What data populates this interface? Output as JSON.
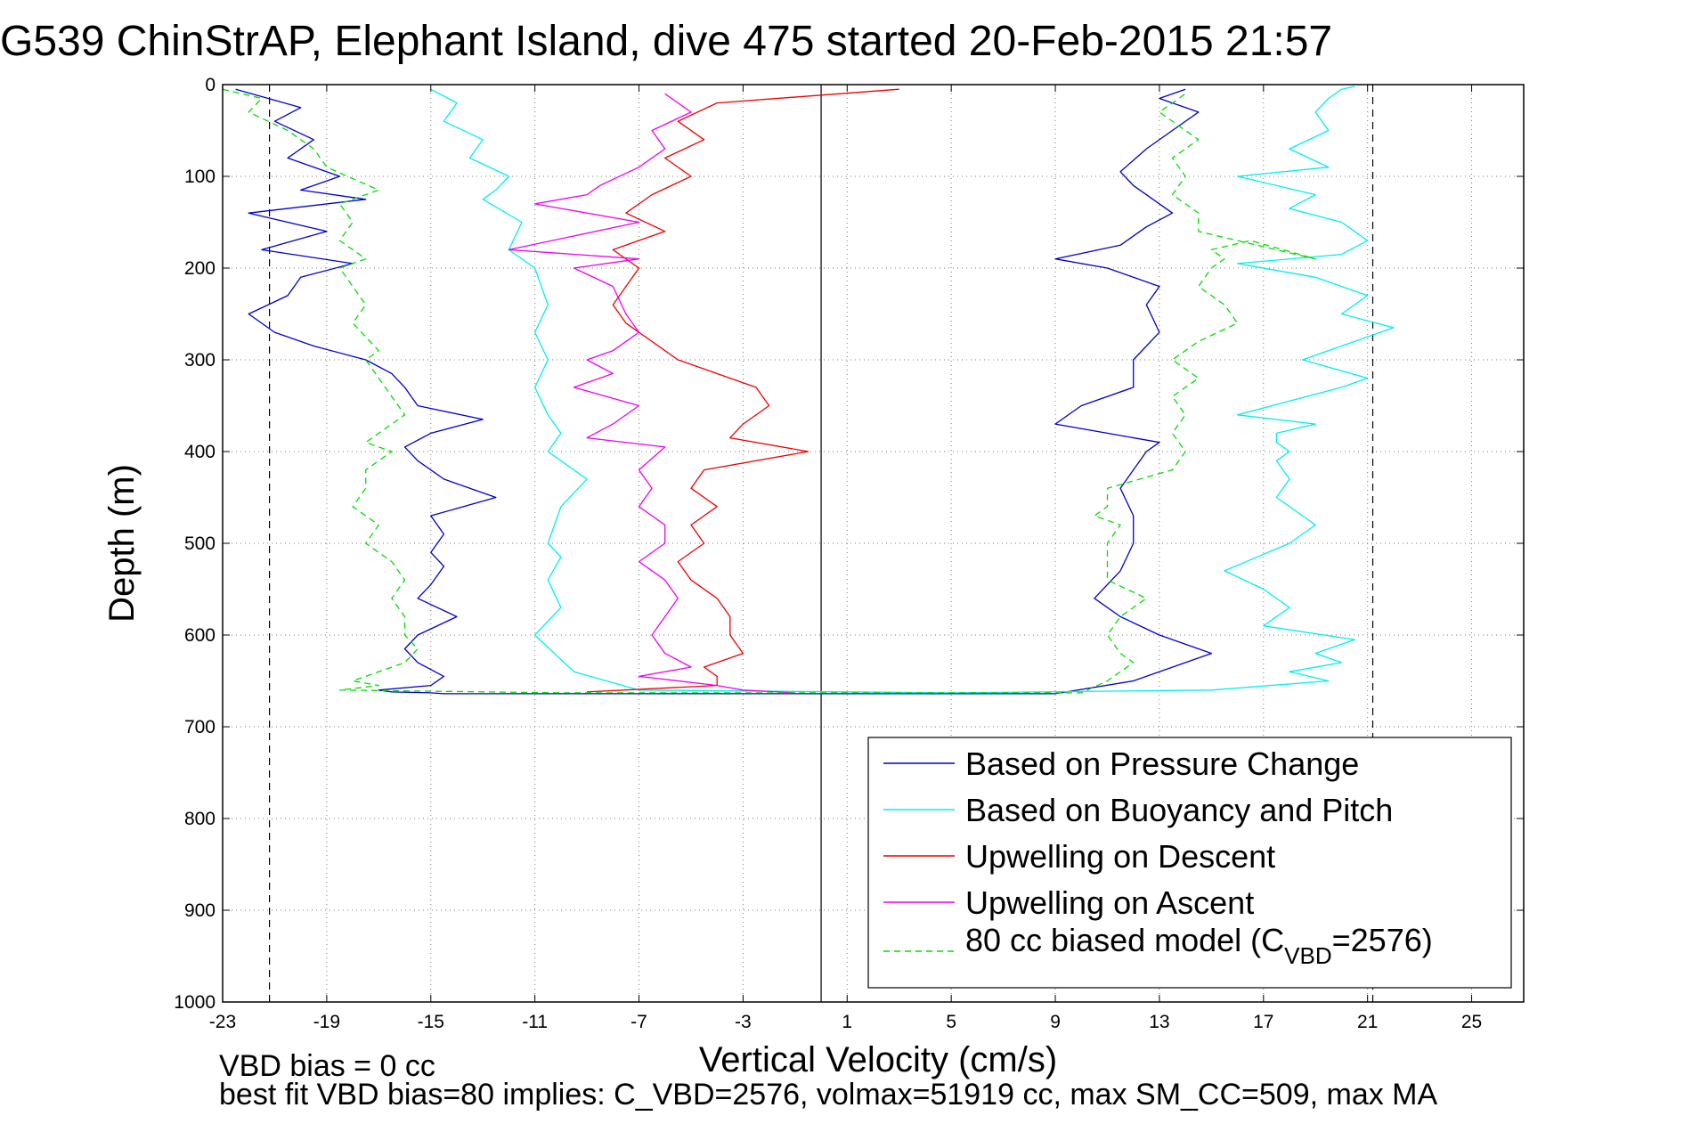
{
  "chart_data": {
    "type": "line",
    "title": "G539 ChinStrAP, Elephant Island, dive 475 started 20-Feb-2015 21:57",
    "xlabel": "Vertical Velocity (cm/s)",
    "ylabel": "Depth (m)",
    "xlim": [
      -23,
      27
    ],
    "ylim": [
      0,
      1000
    ],
    "y_reversed": true,
    "grid": true,
    "legend_position": "lower-right",
    "x_ticks": [
      -23,
      -19,
      -15,
      -11,
      -7,
      -3,
      1,
      5,
      9,
      13,
      17,
      21,
      25
    ],
    "x_tick_labels": [
      "-23",
      "-19",
      "-15",
      "-11",
      "-7",
      "-3",
      "1",
      "5",
      "9",
      "13",
      "17",
      "21",
      "25"
    ],
    "y_ticks": [
      0,
      100,
      200,
      300,
      400,
      500,
      600,
      700,
      800,
      900,
      1000
    ],
    "y_tick_labels": [
      "0",
      "100",
      "200",
      "300",
      "400",
      "500",
      "600",
      "700",
      "800",
      "900",
      "1000"
    ],
    "reference_lines": {
      "solid_vertical_x": 0,
      "dashed_vertical_x": [
        -21.2,
        21.2
      ]
    },
    "series": [
      {
        "name": "Based on Pressure Change",
        "color": "#0000cc",
        "style": "solid",
        "x": [
          -22.5,
          -20,
          -21,
          -19.5,
          -20.5,
          -18.5,
          -20,
          -17.5,
          -22,
          -19,
          -21.5,
          -18,
          -20,
          -20.5,
          -22,
          -21,
          -19.5,
          -17.5,
          -16.5,
          -16,
          -15.5,
          -13,
          -15,
          -16,
          -15.5,
          -14.5,
          -12.5,
          -15,
          -14.5,
          -15,
          -14.5,
          -15,
          -15.5,
          -14,
          -15.5,
          -16,
          -15.5,
          -14.5,
          -15,
          -17,
          -16.5,
          -15,
          -14.5,
          -14,
          -13.5,
          -8,
          9,
          12,
          15,
          13,
          11.5,
          10.5,
          11.5,
          12,
          12,
          11.5,
          12,
          12.5,
          13,
          11,
          9,
          10,
          12,
          12,
          13,
          12.5,
          13,
          11,
          9,
          11.5,
          12.5,
          13.5,
          12,
          11.5,
          12.5,
          13.5,
          14.5,
          13,
          14
        ],
        "y": [
          5,
          25,
          40,
          60,
          80,
          100,
          115,
          125,
          140,
          160,
          180,
          195,
          210,
          230,
          250,
          270,
          285,
          300,
          315,
          330,
          350,
          365,
          380,
          395,
          410,
          430,
          450,
          470,
          490,
          510,
          525,
          545,
          560,
          580,
          600,
          615,
          630,
          645,
          655,
          660,
          662,
          663,
          664,
          664,
          664,
          664,
          664,
          650,
          620,
          600,
          580,
          560,
          530,
          500,
          470,
          440,
          420,
          400,
          390,
          380,
          370,
          350,
          330,
          300,
          270,
          240,
          220,
          200,
          190,
          175,
          155,
          140,
          110,
          95,
          70,
          50,
          30,
          15,
          5
        ]
      },
      {
        "name": "Based on Buoyancy and Pitch",
        "color": "#00eeee",
        "style": "solid",
        "x": [
          -15,
          -14,
          -14.5,
          -13,
          -13.5,
          -12,
          -12.5,
          -13,
          -11.5,
          -12,
          -11,
          -10.5,
          -11,
          -10.5,
          -11,
          -10.5,
          -10,
          -10.5,
          -9,
          -10,
          -10.5,
          -10,
          -10.5,
          -10,
          -11,
          -9.5,
          -7,
          5,
          15,
          19.5,
          18,
          20,
          19,
          20.5,
          17,
          18,
          17,
          15.5,
          18,
          19,
          17.5,
          18,
          17.5,
          18,
          17.5,
          17.5,
          19,
          16,
          20,
          21,
          18.5,
          20,
          22,
          20,
          21,
          19,
          16,
          20,
          21,
          20,
          18,
          19,
          16,
          19.5,
          18,
          19.5,
          19,
          19.5,
          20,
          20.5
        ],
        "y": [
          5,
          20,
          40,
          60,
          80,
          100,
          115,
          125,
          150,
          180,
          200,
          240,
          270,
          300,
          330,
          360,
          380,
          400,
          430,
          460,
          500,
          515,
          540,
          570,
          600,
          640,
          660,
          663,
          660,
          650,
          640,
          630,
          620,
          605,
          590,
          570,
          550,
          530,
          500,
          480,
          450,
          430,
          410,
          400,
          390,
          380,
          370,
          360,
          330,
          320,
          300,
          285,
          265,
          250,
          230,
          210,
          195,
          185,
          170,
          150,
          135,
          120,
          100,
          90,
          70,
          50,
          30,
          15,
          5,
          2
        ]
      },
      {
        "name": "Upwelling on Descent",
        "color": "#ee0000",
        "style": "solid",
        "x": [
          3,
          -4,
          -5.5,
          -4.5,
          -6,
          -5,
          -6.5,
          -7.5,
          -6,
          -8,
          -7,
          -7.5,
          -8,
          -7.5,
          -6.5,
          -6,
          -5.5,
          -4.5,
          -3.5,
          -2.5,
          -2,
          -3,
          -3.5,
          -0.5,
          -4.5,
          -5,
          -4,
          -5,
          -4.5,
          -5.5,
          -5,
          -4,
          -3.5,
          -3.5,
          -3,
          -4.5,
          -4,
          -4,
          -9
        ],
        "y": [
          5,
          20,
          40,
          60,
          80,
          100,
          120,
          140,
          160,
          180,
          200,
          220,
          240,
          260,
          280,
          290,
          300,
          310,
          320,
          330,
          350,
          370,
          385,
          400,
          420,
          440,
          460,
          480,
          500,
          520,
          540,
          560,
          580,
          600,
          620,
          635,
          645,
          655,
          662
        ]
      },
      {
        "name": "Upwelling on Ascent",
        "color": "#ee00ee",
        "style": "solid",
        "x": [
          -6,
          -5,
          -6.5,
          -6,
          -7,
          -8.5,
          -9,
          -11,
          -7,
          -12,
          -7,
          -9.5,
          -8,
          -7.5,
          -7,
          -8,
          -9,
          -8,
          -9.5,
          -7,
          -8,
          -9,
          -6,
          -7,
          -6.5,
          -7,
          -6,
          -6,
          -7,
          -6,
          -5.5,
          -6,
          -6.5,
          -6,
          -5,
          -7,
          -4,
          -3,
          -1
        ],
        "y": [
          10,
          30,
          50,
          70,
          90,
          110,
          120,
          130,
          150,
          180,
          190,
          200,
          220,
          250,
          270,
          290,
          300,
          315,
          330,
          350,
          370,
          385,
          395,
          420,
          440,
          460,
          480,
          500,
          520,
          540,
          560,
          580,
          600,
          620,
          635,
          645,
          655,
          660,
          663
        ]
      },
      {
        "name": "80 cc biased model (C_VBD=2576)",
        "legend_parts": [
          "80 cc biased model (C",
          "VBD",
          "=2576)"
        ],
        "color": "#00dd00",
        "style": "dashed",
        "x": [
          -23,
          -21.5,
          -22,
          -20.5,
          -19.5,
          -19,
          -17,
          -18.5,
          -18,
          -18.5,
          -17.5,
          -18.5,
          -18,
          -17.5,
          -18,
          -17,
          -17.5,
          -17,
          -16.5,
          -16,
          -17,
          -17.5,
          -16.5,
          -17.5,
          -17.5,
          -18,
          -17,
          -17.5,
          -16.5,
          -16,
          -16.5,
          -16,
          -16,
          -15.5,
          -16,
          -17,
          -18,
          -17,
          -18.5,
          -10,
          10,
          11,
          12,
          11.5,
          11,
          11.5,
          12.5,
          11,
          11,
          11.5,
          10.5,
          11,
          11,
          13.5,
          14,
          13.5,
          14,
          13.5,
          14.5,
          13.5,
          14.5,
          16,
          15.5,
          14.5,
          15,
          15.5,
          15,
          16.5,
          19,
          14.5,
          14.5,
          13.5,
          14,
          13.5,
          14.5,
          13,
          14
        ],
        "y": [
          5,
          15,
          30,
          50,
          70,
          90,
          115,
          130,
          150,
          170,
          190,
          200,
          220,
          240,
          260,
          290,
          300,
          320,
          340,
          360,
          380,
          390,
          400,
          420,
          440,
          460,
          480,
          500,
          520,
          540,
          560,
          580,
          600,
          615,
          630,
          640,
          650,
          655,
          660,
          663,
          663,
          650,
          630,
          620,
          600,
          580,
          560,
          540,
          500,
          480,
          470,
          460,
          440,
          420,
          400,
          380,
          360,
          340,
          320,
          300,
          280,
          260,
          240,
          220,
          200,
          190,
          180,
          170,
          190,
          160,
          140,
          120,
          100,
          80,
          60,
          30,
          10
        ]
      }
    ],
    "annotations": [
      "VBD bias = 0 cc",
      "best fit VBD bias=80 implies: C_VBD=2576, volmax=51919 cc, max SM_CC=509, max MA"
    ]
  }
}
